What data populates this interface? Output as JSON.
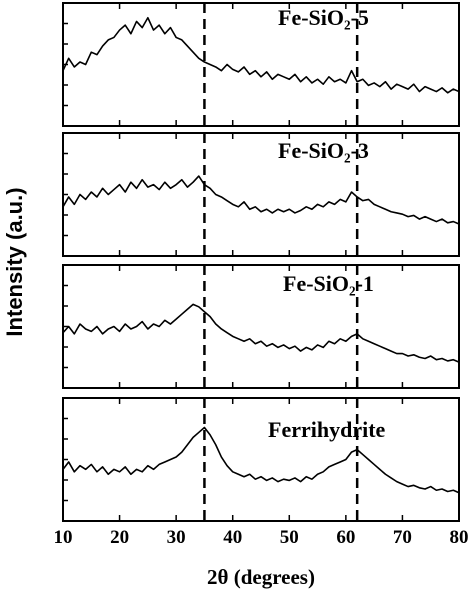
{
  "chart_data": [
    {
      "type": "line",
      "title": "Fe-SiO₂-5",
      "ylabel": "Intensity (a.u.)",
      "xlim": [
        10,
        80
      ],
      "ylim": [
        0,
        100
      ],
      "color": "#000000",
      "vlines": [
        35,
        62
      ],
      "x": [
        10,
        11,
        12,
        13,
        14,
        15,
        16,
        17,
        18,
        19,
        20,
        21,
        22,
        23,
        24,
        25,
        26,
        27,
        28,
        29,
        30,
        31,
        32,
        33,
        34,
        35,
        36,
        37,
        38,
        39,
        40,
        41,
        42,
        43,
        44,
        45,
        46,
        47,
        48,
        49,
        50,
        51,
        52,
        53,
        54,
        55,
        56,
        57,
        58,
        59,
        60,
        61,
        62,
        63,
        64,
        65,
        66,
        67,
        68,
        69,
        70,
        71,
        72,
        73,
        74,
        75,
        76,
        77,
        78,
        79,
        80
      ],
      "values": [
        45,
        55,
        48,
        52,
        50,
        60,
        58,
        65,
        70,
        72,
        78,
        82,
        75,
        85,
        80,
        88,
        78,
        82,
        75,
        80,
        72,
        70,
        65,
        60,
        55,
        52,
        50,
        48,
        45,
        50,
        46,
        44,
        48,
        42,
        45,
        40,
        44,
        38,
        42,
        40,
        38,
        42,
        36,
        40,
        35,
        38,
        34,
        40,
        36,
        38,
        35,
        45,
        36,
        38,
        33,
        35,
        32,
        36,
        30,
        34,
        32,
        30,
        34,
        28,
        32,
        30,
        28,
        31,
        27,
        30,
        28
      ]
    },
    {
      "type": "line",
      "title": "Fe-SiO₂-3",
      "xlim": [
        10,
        80
      ],
      "ylim": [
        0,
        100
      ],
      "color": "#000000",
      "vlines": [
        35,
        62
      ],
      "x": [
        10,
        11,
        12,
        13,
        14,
        15,
        16,
        17,
        18,
        19,
        20,
        21,
        22,
        23,
        24,
        25,
        26,
        27,
        28,
        29,
        30,
        31,
        32,
        33,
        34,
        35,
        36,
        37,
        38,
        39,
        40,
        41,
        42,
        43,
        44,
        45,
        46,
        47,
        48,
        49,
        50,
        51,
        52,
        53,
        54,
        55,
        56,
        57,
        58,
        59,
        60,
        61,
        62,
        63,
        64,
        65,
        66,
        67,
        68,
        69,
        70,
        71,
        72,
        73,
        74,
        75,
        76,
        77,
        78,
        79,
        80
      ],
      "values": [
        40,
        48,
        42,
        50,
        46,
        52,
        48,
        55,
        50,
        54,
        58,
        52,
        60,
        55,
        62,
        56,
        58,
        54,
        60,
        55,
        58,
        62,
        56,
        60,
        65,
        58,
        55,
        50,
        48,
        45,
        42,
        40,
        44,
        38,
        40,
        36,
        38,
        35,
        38,
        36,
        38,
        35,
        37,
        40,
        38,
        42,
        40,
        44,
        42,
        46,
        44,
        52,
        48,
        45,
        46,
        42,
        40,
        38,
        36,
        35,
        34,
        32,
        33,
        30,
        32,
        30,
        28,
        30,
        27,
        28,
        26
      ]
    },
    {
      "type": "line",
      "title": "Fe-SiO₂-1",
      "xlim": [
        10,
        80
      ],
      "ylim": [
        0,
        100
      ],
      "color": "#000000",
      "vlines": [
        35,
        62
      ],
      "x": [
        10,
        11,
        12,
        13,
        14,
        15,
        16,
        17,
        18,
        19,
        20,
        21,
        22,
        23,
        24,
        25,
        26,
        27,
        28,
        29,
        30,
        31,
        32,
        33,
        34,
        35,
        36,
        37,
        38,
        39,
        40,
        41,
        42,
        43,
        44,
        45,
        46,
        47,
        48,
        49,
        50,
        51,
        52,
        53,
        54,
        55,
        56,
        57,
        58,
        59,
        60,
        61,
        62,
        63,
        64,
        65,
        66,
        67,
        68,
        69,
        70,
        71,
        72,
        73,
        74,
        75,
        76,
        77,
        78,
        79,
        80
      ],
      "values": [
        45,
        50,
        44,
        52,
        48,
        46,
        50,
        44,
        48,
        50,
        46,
        52,
        48,
        50,
        54,
        48,
        52,
        50,
        55,
        52,
        56,
        60,
        64,
        68,
        66,
        62,
        58,
        52,
        48,
        45,
        42,
        40,
        38,
        40,
        36,
        38,
        34,
        36,
        33,
        35,
        32,
        34,
        30,
        33,
        31,
        35,
        33,
        38,
        36,
        40,
        38,
        42,
        44,
        40,
        38,
        36,
        34,
        32,
        30,
        28,
        28,
        26,
        27,
        25,
        24,
        26,
        23,
        24,
        22,
        23,
        21
      ]
    },
    {
      "type": "line",
      "title": "Ferrihydrite",
      "xlabel": "2θ (degrees)",
      "xlim": [
        10,
        80
      ],
      "ylim": [
        0,
        100
      ],
      "color": "#000000",
      "vlines": [
        35,
        62
      ],
      "xticks": [
        10,
        20,
        30,
        40,
        50,
        60,
        70,
        80
      ],
      "x": [
        10,
        11,
        12,
        13,
        14,
        15,
        16,
        17,
        18,
        19,
        20,
        21,
        22,
        23,
        24,
        25,
        26,
        27,
        28,
        29,
        30,
        31,
        32,
        33,
        34,
        35,
        36,
        37,
        38,
        39,
        40,
        41,
        42,
        43,
        44,
        45,
        46,
        47,
        48,
        49,
        50,
        51,
        52,
        53,
        54,
        55,
        56,
        57,
        58,
        59,
        60,
        61,
        62,
        63,
        64,
        65,
        66,
        67,
        68,
        69,
        70,
        71,
        72,
        73,
        74,
        75,
        76,
        77,
        78,
        79,
        80
      ],
      "values": [
        42,
        48,
        40,
        45,
        42,
        46,
        40,
        44,
        38,
        42,
        40,
        44,
        38,
        42,
        40,
        45,
        42,
        46,
        48,
        50,
        52,
        56,
        62,
        68,
        72,
        76,
        70,
        62,
        52,
        45,
        40,
        38,
        36,
        38,
        34,
        36,
        33,
        35,
        32,
        34,
        33,
        35,
        32,
        36,
        34,
        38,
        40,
        44,
        46,
        48,
        50,
        56,
        58,
        54,
        50,
        46,
        42,
        38,
        35,
        32,
        30,
        28,
        29,
        27,
        26,
        28,
        25,
        26,
        24,
        25,
        23
      ]
    }
  ]
}
